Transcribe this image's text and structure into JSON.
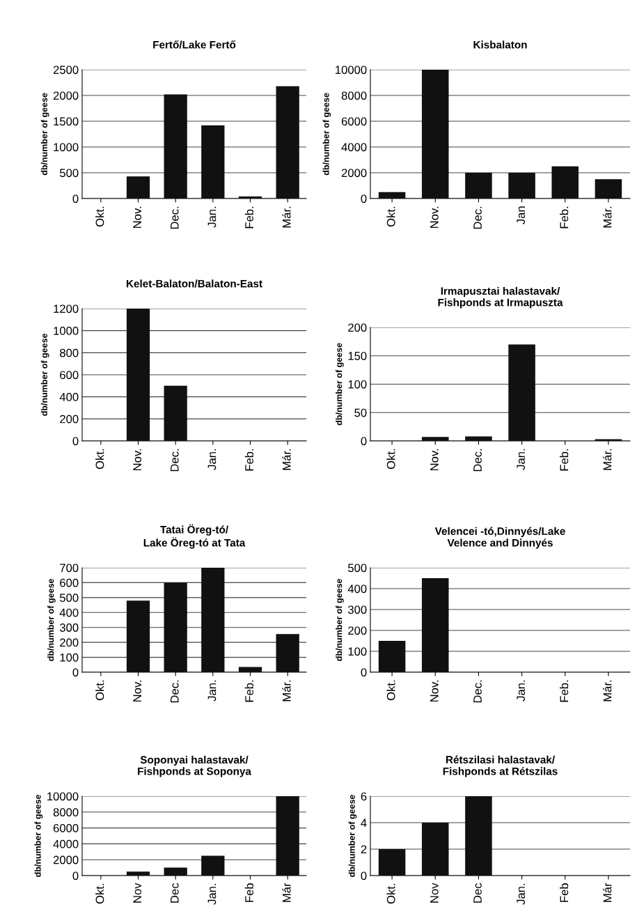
{
  "chart_data": [
    {
      "type": "bar",
      "title": "Fertő/Lake Fertő",
      "ylabel": "db/number of geese",
      "categories": [
        "Okt.",
        "Nov.",
        "Dec.",
        "Jan.",
        "Feb.",
        "Már."
      ],
      "values": [
        0,
        430,
        2020,
        1420,
        40,
        2180
      ],
      "color": "#111111",
      "ylim": [
        0,
        2500
      ],
      "yticks": [
        0,
        500,
        1000,
        1500,
        2000,
        2500
      ],
      "grid": "y"
    },
    {
      "type": "bar",
      "title": "Kisbalaton",
      "ylabel": "db/number of geese",
      "categories": [
        "Okt.",
        "Nov.",
        "Dec.",
        "Jan",
        "Feb.",
        "Már."
      ],
      "values": [
        500,
        10000,
        2000,
        2000,
        2500,
        1500
      ],
      "color": "#111111",
      "ylim": [
        0,
        10000
      ],
      "yticks": [
        0,
        2000,
        4000,
        6000,
        8000,
        10000
      ],
      "grid": "y"
    },
    {
      "type": "bar",
      "title": "Kelet-Balaton/Balaton-East",
      "ylabel": "db/number of geese",
      "categories": [
        "Okt.",
        "Nov.",
        "Dec.",
        "Jan.",
        "Feb.",
        "Már."
      ],
      "values": [
        0,
        1200,
        500,
        0,
        0,
        0
      ],
      "color": "#111111",
      "ylim": [
        0,
        1200
      ],
      "yticks": [
        0,
        200,
        400,
        600,
        800,
        1000,
        1200
      ],
      "grid": "y"
    },
    {
      "type": "bar",
      "title": "Irmapusztai halastavak/\nFishponds at Irmapuszta",
      "ylabel": "db/number of geese",
      "categories": [
        "Okt.",
        "Nov.",
        "Dec.",
        "Jan.",
        "Feb.",
        "Már."
      ],
      "values": [
        0,
        7,
        8,
        170,
        0,
        3
      ],
      "color": "#111111",
      "ylim": [
        0,
        200
      ],
      "yticks": [
        0,
        50,
        100,
        150,
        200
      ],
      "grid": "y"
    },
    {
      "type": "bar",
      "title": "Tatai Öreg-tó/\nLake Öreg-tó at Tata",
      "ylabel": "db/number of geese",
      "categories": [
        "Okt.",
        "Nov.",
        "Dec.",
        "Jan.",
        "Feb.",
        "Már."
      ],
      "values": [
        0,
        480,
        600,
        700,
        35,
        255
      ],
      "color": "#111111",
      "ylim": [
        0,
        700
      ],
      "yticks": [
        0,
        100,
        200,
        300,
        400,
        500,
        600,
        700
      ],
      "grid": "y"
    },
    {
      "type": "bar",
      "title": "Velencei -tó,Dinnyés/Lake\nVelence and Dinnyés",
      "ylabel": "db/number of geese",
      "categories": [
        "Okt.",
        "Nov.",
        "Dec.",
        "Jan.",
        "Feb.",
        "Már."
      ],
      "values": [
        150,
        450,
        0,
        0,
        0,
        0
      ],
      "color": "#111111",
      "ylim": [
        0,
        500
      ],
      "yticks": [
        0,
        100,
        200,
        300,
        400,
        500
      ],
      "grid": "y"
    },
    {
      "type": "bar",
      "title": "Soponyai halastavak/\nFishponds at Soponya",
      "ylabel": "db/number of geese",
      "categories": [
        "Okt.",
        "Nov",
        "Dec",
        "Jan.",
        "Feb",
        "Már"
      ],
      "values": [
        0,
        500,
        1000,
        2500,
        0,
        10000
      ],
      "color": "#111111",
      "ylim": [
        0,
        10000
      ],
      "yticks": [
        0,
        2000,
        4000,
        6000,
        8000,
        10000
      ],
      "grid": "y"
    },
    {
      "type": "bar",
      "title": "Rétszilasi halastavak/\nFishponds at Rétszilas",
      "ylabel": "db/number of geese",
      "categories": [
        "Okt.",
        "Nov",
        "Dec",
        "Jan.",
        "Feb",
        "Már"
      ],
      "values": [
        2,
        4,
        6,
        0,
        0,
        0
      ],
      "color": "#111111",
      "ylim": [
        0,
        6
      ],
      "yticks": [
        0,
        2,
        4,
        6
      ],
      "grid": "y"
    }
  ]
}
